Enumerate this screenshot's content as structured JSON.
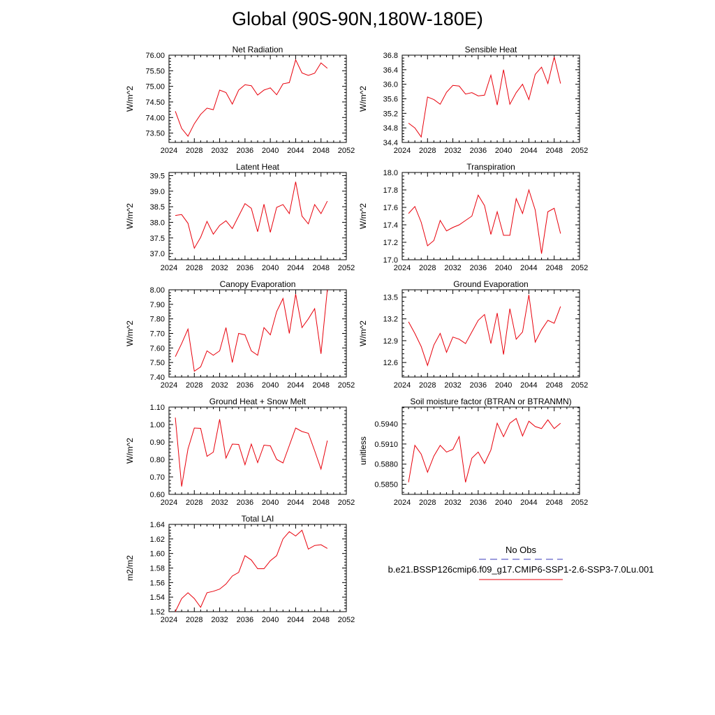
{
  "page_title": "Global (90S-90N,180W-180E)",
  "colors": {
    "model_line": "#e8000b",
    "obs_line": "#3a3ab8",
    "axis": "#000000"
  },
  "legend": {
    "entries": [
      {
        "label": "No Obs",
        "color": "#3a3ab8",
        "style": "dashed"
      },
      {
        "label": "b.e21.BSSP126cmip6.f09_g17.CMIP6-SSP1-2.6-SSP3-7.0Lu.001",
        "color": "#e8000b",
        "style": "solid"
      }
    ]
  },
  "chart_data": [
    {
      "type": "line",
      "title": "Net Radiation",
      "ylabel": "W/m^2",
      "xlim": [
        2024,
        2052
      ],
      "ylim": [
        73.2,
        76.0
      ],
      "xticks": [
        2024,
        2028,
        2032,
        2036,
        2040,
        2044,
        2048,
        2052
      ],
      "yticks": [
        73.5,
        74.0,
        74.5,
        75.0,
        75.5,
        76.0
      ],
      "ytick_labels": [
        "73.50",
        "74.00",
        "74.50",
        "75.00",
        "75.50",
        "76.00"
      ],
      "x": [
        2025,
        2026,
        2027,
        2028,
        2029,
        2030,
        2031,
        2032,
        2033,
        2034,
        2035,
        2036,
        2037,
        2038,
        2039,
        2040,
        2041,
        2042,
        2043,
        2044,
        2045,
        2046,
        2047,
        2048,
        2049
      ],
      "series": [
        {
          "values": [
            74.2,
            73.65,
            73.4,
            73.8,
            74.1,
            74.3,
            74.25,
            74.88,
            74.8,
            74.43,
            74.88,
            75.05,
            75.02,
            74.72,
            74.88,
            74.95,
            74.73,
            75.08,
            75.12,
            75.85,
            75.43,
            75.35,
            75.42,
            75.75,
            75.58
          ]
        }
      ]
    },
    {
      "type": "line",
      "title": "Sensible Heat",
      "ylabel": "W/m^2",
      "xlim": [
        2024,
        2052
      ],
      "ylim": [
        34.4,
        36.8
      ],
      "xticks": [
        2024,
        2028,
        2032,
        2036,
        2040,
        2044,
        2048,
        2052
      ],
      "yticks": [
        34.4,
        34.8,
        35.2,
        35.6,
        36.0,
        36.4,
        36.8
      ],
      "ytick_labels": [
        "34.4",
        "34.8",
        "35.2",
        "35.6",
        "36.0",
        "36.4",
        "36.8"
      ],
      "x": [
        2025,
        2026,
        2027,
        2028,
        2029,
        2030,
        2031,
        2032,
        2033,
        2034,
        2035,
        2036,
        2037,
        2038,
        2039,
        2040,
        2041,
        2042,
        2043,
        2044,
        2045,
        2046,
        2047,
        2048,
        2049
      ],
      "series": [
        {
          "values": [
            34.93,
            34.8,
            34.55,
            35.65,
            35.58,
            35.45,
            35.78,
            35.97,
            35.95,
            35.73,
            35.77,
            35.68,
            35.7,
            36.25,
            35.43,
            36.4,
            35.45,
            35.77,
            36.0,
            35.58,
            36.27,
            36.47,
            36.02,
            36.75,
            36.02
          ]
        }
      ]
    },
    {
      "type": "line",
      "title": "Latent Heat",
      "ylabel": "W/m^2",
      "xlim": [
        2024,
        2052
      ],
      "ylim": [
        36.8,
        39.6
      ],
      "xticks": [
        2024,
        2028,
        2032,
        2036,
        2040,
        2044,
        2048,
        2052
      ],
      "yticks": [
        37.0,
        37.5,
        38.0,
        38.5,
        39.0,
        39.5
      ],
      "ytick_labels": [
        "37.0",
        "37.5",
        "38.0",
        "38.5",
        "39.0",
        "39.5"
      ],
      "x": [
        2025,
        2026,
        2027,
        2028,
        2029,
        2030,
        2031,
        2032,
        2033,
        2034,
        2035,
        2036,
        2037,
        2038,
        2039,
        2040,
        2041,
        2042,
        2043,
        2044,
        2045,
        2046,
        2047,
        2048,
        2049
      ],
      "series": [
        {
          "values": [
            38.22,
            38.25,
            37.97,
            37.17,
            37.52,
            38.03,
            37.62,
            37.9,
            38.05,
            37.8,
            38.2,
            38.6,
            38.45,
            37.7,
            38.58,
            37.68,
            38.48,
            38.57,
            38.28,
            39.3,
            38.2,
            37.95,
            38.57,
            38.28,
            38.68
          ]
        }
      ]
    },
    {
      "type": "line",
      "title": "Transpiration",
      "ylabel": "W/m^2",
      "xlim": [
        2024,
        2052
      ],
      "ylim": [
        17.0,
        18.0
      ],
      "xticks": [
        2024,
        2028,
        2032,
        2036,
        2040,
        2044,
        2048,
        2052
      ],
      "yticks": [
        17.0,
        17.2,
        17.4,
        17.6,
        17.8,
        18.0
      ],
      "ytick_labels": [
        "17.0",
        "17.2",
        "17.4",
        "17.6",
        "17.8",
        "18.0"
      ],
      "x": [
        2025,
        2026,
        2027,
        2028,
        2029,
        2030,
        2031,
        2032,
        2033,
        2034,
        2035,
        2036,
        2037,
        2038,
        2039,
        2040,
        2041,
        2042,
        2043,
        2044,
        2045,
        2046,
        2047,
        2048,
        2049
      ],
      "series": [
        {
          "values": [
            17.53,
            17.61,
            17.43,
            17.16,
            17.22,
            17.45,
            17.33,
            17.37,
            17.4,
            17.45,
            17.5,
            17.74,
            17.62,
            17.29,
            17.55,
            17.28,
            17.28,
            17.7,
            17.53,
            17.8,
            17.57,
            17.07,
            17.55,
            17.59,
            17.3
          ]
        }
      ]
    },
    {
      "type": "line",
      "title": "Canopy Evaporation",
      "ylabel": "W/m^2",
      "xlim": [
        2024,
        2052
      ],
      "ylim": [
        7.4,
        8.0
      ],
      "xticks": [
        2024,
        2028,
        2032,
        2036,
        2040,
        2044,
        2048,
        2052
      ],
      "yticks": [
        7.4,
        7.5,
        7.6,
        7.7,
        7.8,
        7.9,
        8.0
      ],
      "ytick_labels": [
        "7.40",
        "7.50",
        "7.60",
        "7.70",
        "7.80",
        "7.90",
        "8.00"
      ],
      "x": [
        2025,
        2026,
        2027,
        2028,
        2029,
        2030,
        2031,
        2032,
        2033,
        2034,
        2035,
        2036,
        2037,
        2038,
        2039,
        2040,
        2041,
        2042,
        2043,
        2044,
        2045,
        2046,
        2047,
        2048,
        2049
      ],
      "series": [
        {
          "values": [
            7.54,
            7.63,
            7.73,
            7.44,
            7.47,
            7.58,
            7.55,
            7.58,
            7.74,
            7.5,
            7.7,
            7.69,
            7.58,
            7.55,
            7.74,
            7.69,
            7.85,
            7.94,
            7.7,
            7.97,
            7.74,
            7.8,
            7.87,
            7.56,
            8.0
          ]
        }
      ]
    },
    {
      "type": "line",
      "title": "Ground Evaporation",
      "ylabel": "W/m^2",
      "xlim": [
        2024,
        2052
      ],
      "ylim": [
        12.4,
        13.6
      ],
      "xticks": [
        2024,
        2028,
        2032,
        2036,
        2040,
        2044,
        2048,
        2052
      ],
      "yticks": [
        12.6,
        12.9,
        13.2,
        13.5
      ],
      "ytick_labels": [
        "12.6",
        "12.9",
        "13.2",
        "13.5"
      ],
      "x": [
        2025,
        2026,
        2027,
        2028,
        2029,
        2030,
        2031,
        2032,
        2033,
        2034,
        2035,
        2036,
        2037,
        2038,
        2039,
        2040,
        2041,
        2042,
        2043,
        2044,
        2045,
        2046,
        2047,
        2048,
        2049
      ],
      "series": [
        {
          "values": [
            13.16,
            13.0,
            12.82,
            12.56,
            12.84,
            13.0,
            12.74,
            12.95,
            12.92,
            12.86,
            13.02,
            13.18,
            13.26,
            12.86,
            13.28,
            12.71,
            13.34,
            12.92,
            13.02,
            13.53,
            12.88,
            13.05,
            13.18,
            13.14,
            13.37
          ]
        }
      ]
    },
    {
      "type": "line",
      "title": "Ground Heat + Snow Melt",
      "ylabel": "W/m^2",
      "xlim": [
        2024,
        2052
      ],
      "ylim": [
        0.6,
        1.1
      ],
      "xticks": [
        2024,
        2028,
        2032,
        2036,
        2040,
        2044,
        2048,
        2052
      ],
      "yticks": [
        0.6,
        0.7,
        0.8,
        0.9,
        1.0,
        1.1
      ],
      "ytick_labels": [
        "0.60",
        "0.70",
        "0.80",
        "0.90",
        "1.00",
        "1.10"
      ],
      "x": [
        2025,
        2026,
        2027,
        2028,
        2029,
        2030,
        2031,
        2032,
        2033,
        2034,
        2035,
        2036,
        2037,
        2038,
        2039,
        2040,
        2041,
        2042,
        2043,
        2044,
        2045,
        2046,
        2047,
        2048,
        2049
      ],
      "series": [
        {
          "values": [
            1.04,
            0.645,
            0.86,
            0.98,
            0.978,
            0.818,
            0.842,
            1.03,
            0.808,
            0.888,
            0.886,
            0.77,
            0.888,
            0.782,
            0.882,
            0.878,
            0.8,
            0.78,
            0.88,
            0.98,
            0.96,
            0.95,
            0.85,
            0.745,
            0.908
          ]
        }
      ]
    },
    {
      "type": "line",
      "title": "Soil moisture factor (BTRAN or BTRANMN)",
      "ylabel": "unitless",
      "xlim": [
        2024,
        2052
      ],
      "ylim": [
        0.5835,
        0.5965
      ],
      "xticks": [
        2024,
        2028,
        2032,
        2036,
        2040,
        2044,
        2048,
        2052
      ],
      "yticks": [
        0.585,
        0.588,
        0.591,
        0.594
      ],
      "ytick_labels": [
        "0.5850",
        "0.5880",
        "0.5910",
        "0.5940"
      ],
      "x": [
        2025,
        2026,
        2027,
        2028,
        2029,
        2030,
        2031,
        2032,
        2033,
        2034,
        2035,
        2036,
        2037,
        2038,
        2039,
        2040,
        2041,
        2042,
        2043,
        2044,
        2045,
        2046,
        2047,
        2048,
        2049
      ],
      "series": [
        {
          "values": [
            0.5853,
            0.5908,
            0.5895,
            0.5868,
            0.5892,
            0.5908,
            0.5898,
            0.5902,
            0.5921,
            0.5853,
            0.5889,
            0.5898,
            0.5881,
            0.5901,
            0.5941,
            0.5921,
            0.5941,
            0.5948,
            0.5922,
            0.5944,
            0.5936,
            0.5933,
            0.5946,
            0.5933,
            0.5941
          ]
        }
      ]
    },
    {
      "type": "line",
      "title": "Total LAI",
      "ylabel": "m2/m2",
      "xlim": [
        2024,
        2052
      ],
      "ylim": [
        1.52,
        1.64
      ],
      "xticks": [
        2024,
        2028,
        2032,
        2036,
        2040,
        2044,
        2048,
        2052
      ],
      "yticks": [
        1.52,
        1.54,
        1.56,
        1.58,
        1.6,
        1.62,
        1.64
      ],
      "ytick_labels": [
        "1.52",
        "1.54",
        "1.56",
        "1.58",
        "1.60",
        "1.62",
        "1.64"
      ],
      "x": [
        2025,
        2026,
        2027,
        2028,
        2029,
        2030,
        2031,
        2032,
        2033,
        2034,
        2035,
        2036,
        2037,
        2038,
        2039,
        2040,
        2041,
        2042,
        2043,
        2044,
        2045,
        2046,
        2047,
        2048,
        2049
      ],
      "series": [
        {
          "values": [
            1.52,
            1.538,
            1.546,
            1.538,
            1.526,
            1.546,
            1.548,
            1.551,
            1.558,
            1.569,
            1.574,
            1.597,
            1.591,
            1.579,
            1.579,
            1.59,
            1.597,
            1.62,
            1.63,
            1.624,
            1.632,
            1.606,
            1.611,
            1.612,
            1.607
          ]
        }
      ]
    }
  ]
}
